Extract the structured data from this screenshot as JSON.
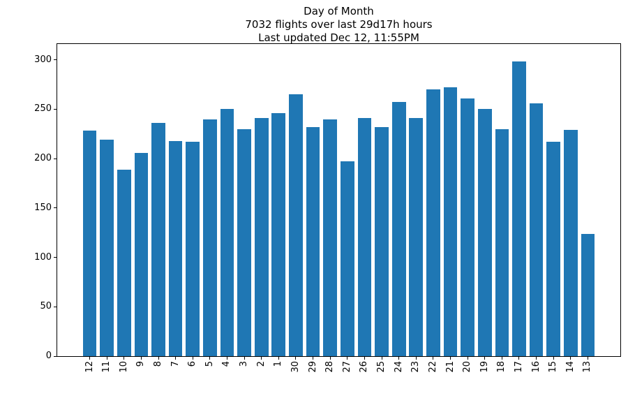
{
  "figure": {
    "title_lines": [
      "Day of Month",
      "7032 flights over last 29d17h hours",
      "Last updated Dec 12, 11:55PM"
    ]
  },
  "chart_data": {
    "type": "bar",
    "title": "Day of Month",
    "subtitle": "7032 flights over last 29d17h hours",
    "status_line": "Last updated Dec 12, 11:55PM",
    "categories": [
      "12",
      "11",
      "10",
      "9",
      "8",
      "7",
      "6",
      "5",
      "4",
      "3",
      "2",
      "1",
      "30",
      "29",
      "28",
      "27",
      "26",
      "25",
      "24",
      "23",
      "22",
      "21",
      "20",
      "19",
      "18",
      "17",
      "16",
      "15",
      "14",
      "13"
    ],
    "values": [
      228,
      219,
      189,
      206,
      236,
      218,
      217,
      240,
      250,
      230,
      241,
      246,
      265,
      232,
      240,
      197,
      241,
      232,
      257,
      241,
      270,
      272,
      261,
      250,
      230,
      298,
      256,
      217,
      229,
      124
    ],
    "total_flights": 7032,
    "xlabel": "",
    "ylabel": "",
    "ylim": [
      0,
      316
    ],
    "yticks": [
      0,
      50,
      100,
      150,
      200,
      250,
      300
    ],
    "bar_color": "#1f77b4",
    "grid": false,
    "legend_position": "none"
  }
}
